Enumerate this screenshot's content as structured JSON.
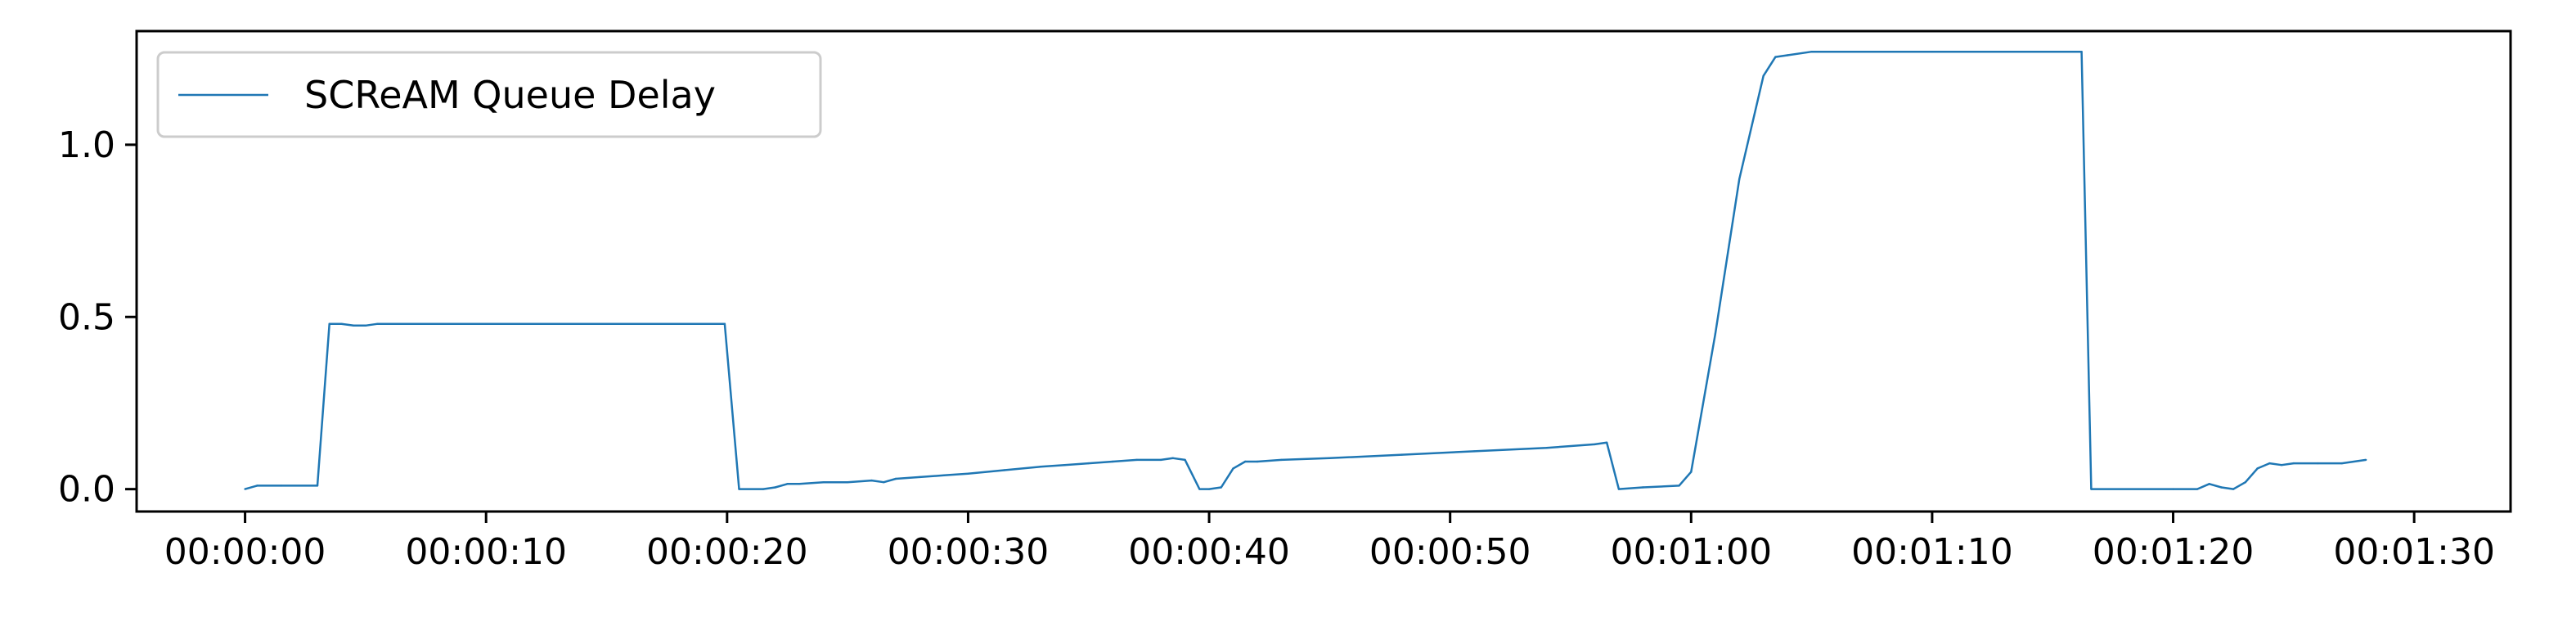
{
  "chart_data": {
    "type": "line",
    "title": "",
    "xlabel": "",
    "ylabel": "",
    "xlim": [
      -4.5,
      94
    ],
    "ylim": [
      -0.065,
      1.33
    ],
    "grid": false,
    "legend_placement": "top-left",
    "x_ticks": [
      {
        "value": 0,
        "label": "00:00:00"
      },
      {
        "value": 10,
        "label": "00:00:10"
      },
      {
        "value": 20,
        "label": "00:00:20"
      },
      {
        "value": 30,
        "label": "00:00:30"
      },
      {
        "value": 40,
        "label": "00:00:40"
      },
      {
        "value": 50,
        "label": "00:00:50"
      },
      {
        "value": 60,
        "label": "00:01:00"
      },
      {
        "value": 70,
        "label": "00:01:10"
      },
      {
        "value": 80,
        "label": "00:01:20"
      },
      {
        "value": 90,
        "label": "00:01:30"
      }
    ],
    "y_ticks": [
      {
        "value": 0.0,
        "label": "0.0"
      },
      {
        "value": 0.5,
        "label": "0.5"
      },
      {
        "value": 1.0,
        "label": "1.0"
      }
    ],
    "series": [
      {
        "name": "SCReAM Queue Delay",
        "color": "#1f77b4",
        "x": [
          0,
          0.5,
          1.5,
          3.0,
          3.5,
          4.0,
          4.5,
          5.0,
          5.5,
          10,
          15,
          19.5,
          19.9,
          20.5,
          21.5,
          22.0,
          22.5,
          23.0,
          24.0,
          25.0,
          26.0,
          26.5,
          27.0,
          28.0,
          29.0,
          30.0,
          31.5,
          33.0,
          34.0,
          35.0,
          36.0,
          37.0,
          38.0,
          38.5,
          39.0,
          39.6,
          40.0,
          40.5,
          41.0,
          41.5,
          42.0,
          43.0,
          45.0,
          48.0,
          51.0,
          54.0,
          56.0,
          56.5,
          57.0,
          58.0,
          59.5,
          60.0,
          61.0,
          62.0,
          63.0,
          63.5,
          64.0,
          65.0,
          70.0,
          76.2,
          76.6,
          80.0,
          81.0,
          81.5,
          82.0,
          82.5,
          83.0,
          83.5,
          84.0,
          84.5,
          85.0,
          86.0,
          87.0,
          88.0
        ],
        "y": [
          0.0,
          0.01,
          0.01,
          0.01,
          0.48,
          0.48,
          0.475,
          0.475,
          0.48,
          0.48,
          0.48,
          0.48,
          0.48,
          0.0,
          0.0,
          0.005,
          0.015,
          0.015,
          0.02,
          0.02,
          0.025,
          0.02,
          0.03,
          0.035,
          0.04,
          0.045,
          0.055,
          0.065,
          0.07,
          0.075,
          0.08,
          0.085,
          0.085,
          0.09,
          0.085,
          0.0,
          0.0,
          0.005,
          0.06,
          0.08,
          0.08,
          0.085,
          0.09,
          0.1,
          0.11,
          0.12,
          0.13,
          0.135,
          0.0,
          0.005,
          0.01,
          0.05,
          0.45,
          0.9,
          1.2,
          1.255,
          1.26,
          1.27,
          1.27,
          1.27,
          0.0,
          0.0,
          0.0,
          0.015,
          0.005,
          0.0,
          0.02,
          0.06,
          0.075,
          0.07,
          0.075,
          0.075,
          0.075,
          0.085
        ]
      }
    ]
  }
}
